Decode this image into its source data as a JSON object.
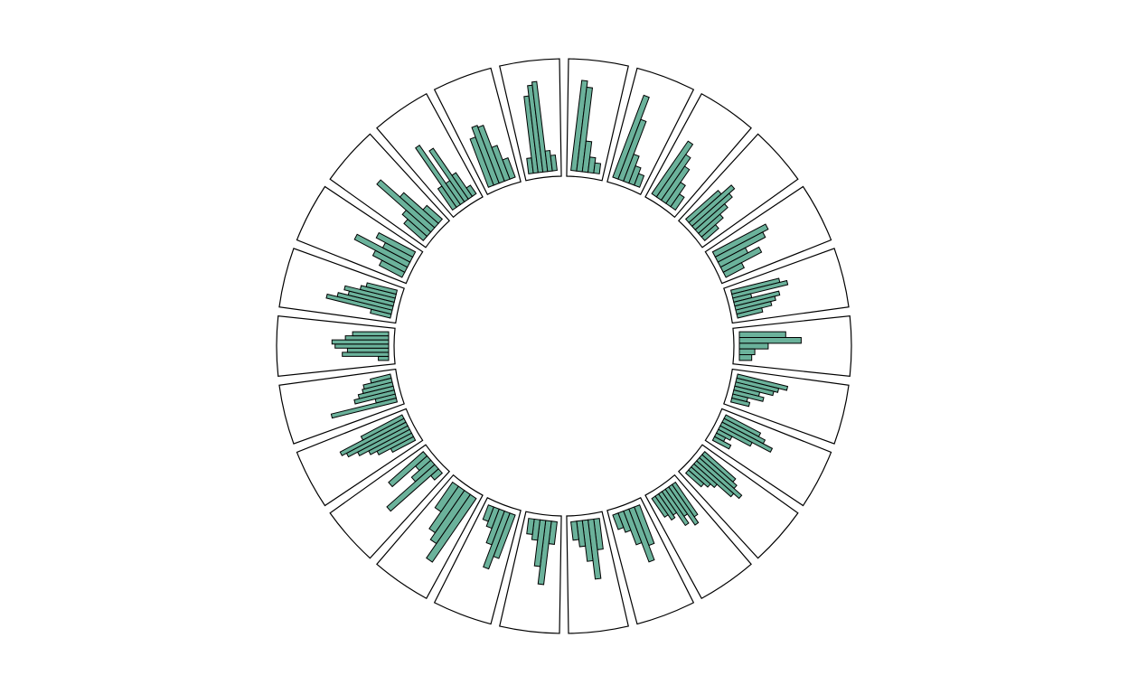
{
  "chart_data": {
    "type": "bar",
    "layout": "circular",
    "sector_count": 26,
    "bar_color": "#6bb29b",
    "stroke_color": "#000000",
    "title": "",
    "xlabel": "",
    "ylabel": "",
    "ylim": [
      0,
      1
    ],
    "grid": false,
    "legend": "none",
    "sectors": [
      {
        "values": [
          0.88,
          0.82,
          0.3,
          0.15,
          0.1
        ]
      },
      {
        "values": [
          0.85,
          0.62,
          0.28,
          0.18,
          0.12
        ]
      },
      {
        "values": [
          0.62,
          0.5,
          0.4,
          0.25,
          0.15
        ]
      },
      {
        "values": [
          0.42,
          0.55,
          0.48,
          0.38,
          0.28,
          0.18
        ]
      },
      {
        "values": [
          0.58,
          0.52,
          0.3,
          0.42,
          0.2
        ]
      },
      {
        "values": [
          0.48,
          0.55,
          0.18,
          0.45,
          0.4,
          0.35,
          0.25
        ]
      },
      {
        "values": [
          0.45,
          0.6,
          0.28,
          0.15,
          0.12
        ]
      },
      {
        "values": [
          0.5,
          0.42,
          0.38,
          0.25,
          0.3,
          0.15,
          0.18
        ]
      },
      {
        "values": [
          0.38,
          0.45,
          0.55,
          0.35,
          0.15,
          0.1,
          0.18
        ]
      },
      {
        "values": [
          0.4,
          0.45,
          0.55,
          0.48,
          0.3,
          0.25,
          0.2
        ]
      },
      {
        "values": [
          0.38,
          0.45,
          0.32,
          0.4,
          0.25,
          0.28,
          0.22
        ]
      },
      {
        "values": [
          0.4,
          0.55,
          0.35,
          0.2,
          0.15
        ]
      },
      {
        "values": [
          0.3,
          0.58,
          0.4,
          0.25,
          0.18
        ]
      },
      {
        "values": [
          0.22,
          0.62,
          0.45,
          0.2,
          0.15
        ]
      },
      {
        "values": [
          0.45,
          0.58,
          0.35,
          0.2,
          0.15
        ]
      },
      {
        "values": [
          0.75,
          0.58,
          0.5,
          0.3
        ]
      },
      {
        "values": [
          0.1,
          0.62,
          0.25,
          0.15,
          0.45
        ]
      },
      {
        "values": [
          0.25,
          0.38,
          0.45,
          0.55,
          0.65,
          0.7,
          0.45
        ]
      },
      {
        "values": [
          0.65,
          0.2,
          0.4,
          0.35,
          0.3,
          0.28,
          0.2
        ]
      },
      {
        "values": [
          0.1,
          0.45,
          0.4,
          0.52,
          0.55,
          0.42,
          0.35
        ]
      },
      {
        "values": [
          0.2,
          0.65,
          0.55,
          0.45,
          0.5,
          0.35,
          0.3
        ]
      },
      {
        "values": [
          0.25,
          0.35,
          0.58,
          0.3,
          0.4
        ]
      },
      {
        "values": [
          0.25,
          0.32,
          0.7,
          0.45,
          0.2
        ]
      },
      {
        "values": [
          0.25,
          0.7,
          0.25,
          0.6,
          0.28,
          0.1
        ]
      },
      {
        "values": [
          0.5,
          0.6,
          0.58,
          0.35,
          0.2
        ]
      },
      {
        "values": [
          0.15,
          0.75,
          0.85,
          0.88,
          0.2,
          0.15
        ]
      }
    ]
  }
}
